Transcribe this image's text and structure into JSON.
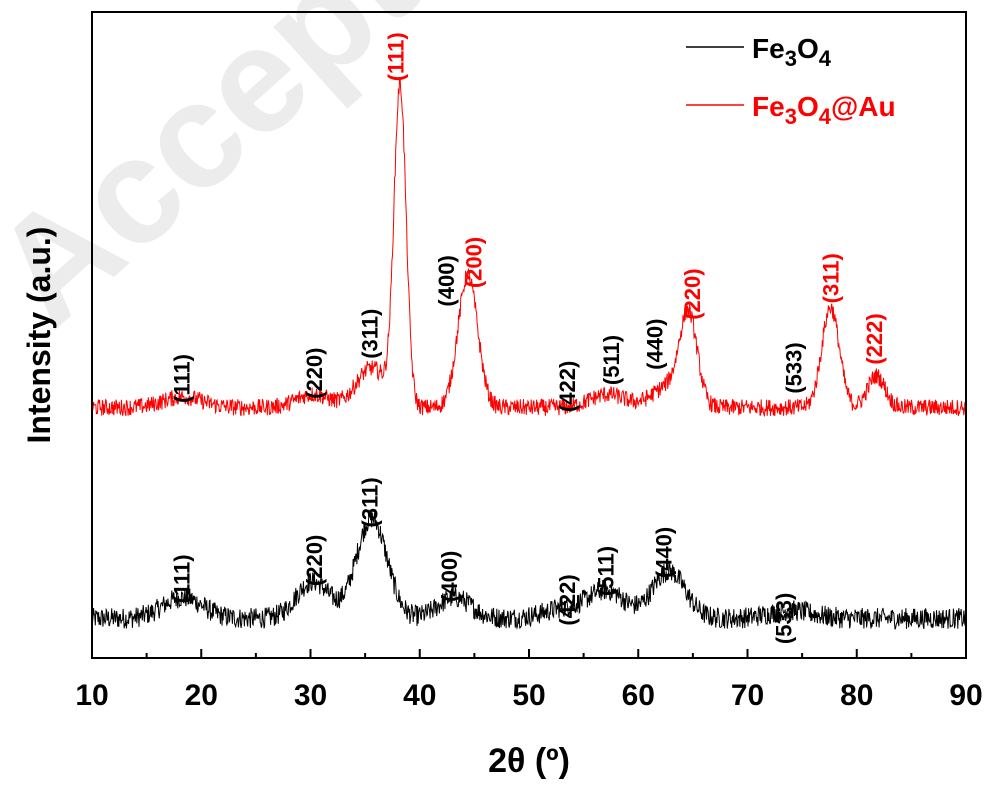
{
  "watermark": "Accepted manuscript",
  "chart_data": {
    "type": "line",
    "xlabel": "2θ (º)",
    "ylabel": "Intensity (a.u.)",
    "xlim": [
      10,
      90
    ],
    "x_ticks": [
      "10",
      "20",
      "30",
      "40",
      "50",
      "60",
      "70",
      "80",
      "90"
    ],
    "y_ticks_shown": false,
    "grid": false,
    "legend_position": "top-right",
    "colors": {
      "fe3o4": "#000000",
      "fe3o4_au": "#ff0000"
    },
    "series": [
      {
        "name": "Fe3O4",
        "legend": {
          "main": "Fe",
          "sub1": "3",
          "mid": "O",
          "sub2": "4",
          "tail": ""
        },
        "color": "#000000",
        "baseline": 0.15,
        "noise": 0.05,
        "peaks": [
          {
            "x": 18.3,
            "h": 0.08,
            "w": 1.8
          },
          {
            "x": 30.2,
            "h": 0.14,
            "w": 1.5
          },
          {
            "x": 35.6,
            "h": 0.38,
            "w": 1.4
          },
          {
            "x": 43.2,
            "h": 0.08,
            "w": 1.5
          },
          {
            "x": 53.5,
            "h": 0.04,
            "w": 2.0
          },
          {
            "x": 57.2,
            "h": 0.1,
            "w": 1.6
          },
          {
            "x": 62.8,
            "h": 0.18,
            "w": 1.5
          },
          {
            "x": 74.0,
            "h": 0.03,
            "w": 2.0
          }
        ]
      },
      {
        "name": "Fe3O4@Au",
        "legend": {
          "main": "Fe",
          "sub1": "3",
          "mid": "O",
          "sub2": "4",
          "tail": "@Au"
        },
        "color": "#ff0000",
        "baseline": 0.95,
        "noise": 0.04,
        "peaks": [
          {
            "x": 18.3,
            "h": 0.04,
            "w": 1.8
          },
          {
            "x": 30.2,
            "h": 0.05,
            "w": 1.5
          },
          {
            "x": 35.6,
            "h": 0.15,
            "w": 1.4
          },
          {
            "x": 38.2,
            "h": 1.2,
            "w": 0.55
          },
          {
            "x": 44.4,
            "h": 0.5,
            "w": 0.9
          },
          {
            "x": 57.2,
            "h": 0.05,
            "w": 1.6
          },
          {
            "x": 62.8,
            "h": 0.08,
            "w": 1.5
          },
          {
            "x": 64.6,
            "h": 0.33,
            "w": 0.8
          },
          {
            "x": 77.6,
            "h": 0.38,
            "w": 0.8
          },
          {
            "x": 81.8,
            "h": 0.12,
            "w": 0.8
          }
        ]
      }
    ],
    "annotations": [
      {
        "text": "(111)",
        "x": 18.4,
        "y": 1.06,
        "color": "#000000"
      },
      {
        "text": "(220)",
        "x": 30.5,
        "y": 1.08,
        "color": "#000000"
      },
      {
        "text": "(311)",
        "x": 35.6,
        "y": 1.23,
        "color": "#000000"
      },
      {
        "text": "(400)",
        "x": 42.6,
        "y": 1.43,
        "color": "#000000"
      },
      {
        "text": "(200)",
        "x": 45.1,
        "y": 1.5,
        "color": "#ff0000"
      },
      {
        "text": "(422)",
        "x": 53.7,
        "y": 1.03,
        "color": "#000000"
      },
      {
        "text": "(511)",
        "x": 57.7,
        "y": 1.13,
        "color": "#000000"
      },
      {
        "text": "(440)",
        "x": 61.7,
        "y": 1.19,
        "color": "#000000"
      },
      {
        "text": "(220)",
        "x": 65.1,
        "y": 1.38,
        "color": "#ff0000"
      },
      {
        "text": "(533)",
        "x": 74.4,
        "y": 1.1,
        "color": "#000000"
      },
      {
        "text": "(311)",
        "x": 77.8,
        "y": 1.44,
        "color": "#ff0000"
      },
      {
        "text": "(222)",
        "x": 81.8,
        "y": 1.21,
        "color": "#ff0000"
      },
      {
        "text": "(111)",
        "x": 38.0,
        "y": 2.28,
        "color": "#ff0000"
      },
      {
        "text": "(111)",
        "x": 18.4,
        "y": 0.3,
        "color": "#000000"
      },
      {
        "text": "(220)",
        "x": 30.5,
        "y": 0.37,
        "color": "#000000"
      },
      {
        "text": "(311)",
        "x": 35.6,
        "y": 0.59,
        "color": "#000000"
      },
      {
        "text": "(400)",
        "x": 42.9,
        "y": 0.31,
        "color": "#000000"
      },
      {
        "text": "(422)",
        "x": 53.7,
        "y": 0.22,
        "color": "#000000"
      },
      {
        "text": "(511)",
        "x": 57.2,
        "y": 0.33,
        "color": "#000000"
      },
      {
        "text": "(440)",
        "x": 62.5,
        "y": 0.4,
        "color": "#000000"
      },
      {
        "text": "(533)",
        "x": 73.5,
        "y": 0.15,
        "color": "#000000"
      }
    ],
    "ylim": [
      0,
      2.45
    ]
  }
}
